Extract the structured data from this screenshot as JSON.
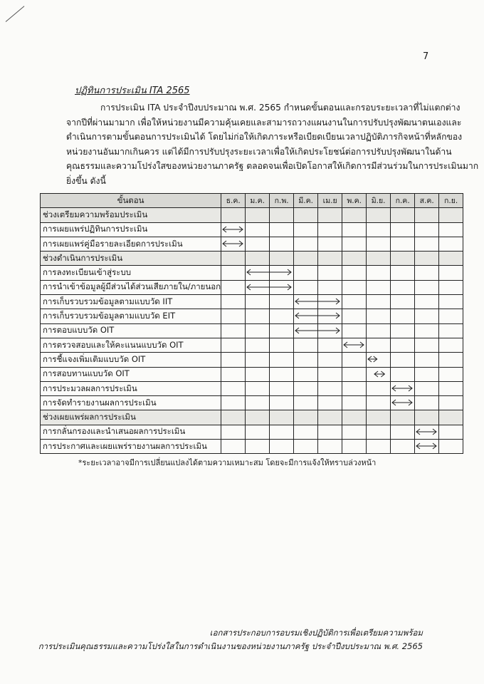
{
  "page_number": "7",
  "title": "ปฏิทินการประเมิน ITA 2565",
  "paragraph_lines": [
    "การประเมิน ITA ประจำปีงบประมาณ พ.ศ. 2565 กำหนดขั้นตอนและกรอบระยะเวลาที่ไม่แตกต่าง",
    "จากปีที่ผ่านมามาก เพื่อให้หน่วยงานมีความคุ้นเคยและสามารถวางแผนงานในการปรับปรุงพัฒนาตนเองและ",
    "ดำเนินการตามขั้นตอนการประเมินได้ โดยไม่ก่อให้เกิดภาระหรือเบียดเบียนเวลาปฏิบัติภารกิจหน้าที่หลักของ",
    "หน่วยงานอันมากเกินควร แต่ได้มีการปรับปรุงระยะเวลาเพื่อให้เกิดประโยชน์ต่อการปรับปรุงพัฒนาในด้าน",
    "คุณธรรมและความโปร่งใสของหน่วยงานภาครัฐ ตลอดจนเพื่อเปิดโอกาสให้เกิดการมีส่วนร่วมในการประเมินมาก",
    "ยิ่งขึ้น ดังนี้"
  ],
  "table": {
    "step_header": "ขั้นตอน",
    "months": [
      "ธ.ค.",
      "ม.ค.",
      "ก.พ.",
      "มี.ค.",
      "เม.ย",
      "พ.ค.",
      "มิ.ย.",
      "ก.ค.",
      "ส.ค.",
      "ก.ย."
    ],
    "rows": [
      {
        "label": "ช่วงเตรียมความพร้อมประเมิน",
        "section": true
      },
      {
        "label": "การเผยแพร่ปฏิทินการประเมิน",
        "span": [
          0,
          1
        ]
      },
      {
        "label": "การเผยแพร่คู่มือรายละเอียดการประเมิน",
        "span": [
          0,
          1
        ]
      },
      {
        "label": "ช่วงดำเนินการประเมิน",
        "section": true
      },
      {
        "label": "การลงทะเบียนเข้าสู่ระบบ",
        "span": [
          1,
          3
        ]
      },
      {
        "label": "การนำเข้าข้อมูลผู้มีส่วนได้ส่วนเสียภายใน/ภายนอก",
        "span": [
          1,
          3
        ]
      },
      {
        "label": "การเก็บรวบรวมข้อมูลตามแบบวัด IIT",
        "span": [
          3,
          5
        ]
      },
      {
        "label": "การเก็บรวบรวมข้อมูลตามแบบวัด EIT",
        "span": [
          3,
          5
        ]
      },
      {
        "label": "การตอบแบบวัด OIT",
        "span": [
          3,
          5
        ]
      },
      {
        "label": "การตรวจสอบและให้คะแนนแบบวัด OIT",
        "span": [
          5,
          6
        ]
      },
      {
        "label": "การชี้แจงเพิ่มเติมแบบวัด OIT",
        "span": [
          6,
          6.55
        ]
      },
      {
        "label": "การสอบทานแบบวัด OIT",
        "span": [
          6.25,
          6.85
        ]
      },
      {
        "label": "การประมวลผลการประเมิน",
        "span": [
          7,
          8
        ]
      },
      {
        "label": "การจัดทำรายงานผลการประเมิน",
        "span": [
          7,
          8
        ]
      },
      {
        "label": "ช่วงเผยแพร่ผลการประเมิน",
        "section": true
      },
      {
        "label": "การกลั่นกรองและนำเสนอผลการประเมิน",
        "span": [
          8,
          9
        ]
      },
      {
        "label": "การประกาศและเผยแพร่รายงานผลการประเมิน",
        "span": [
          8,
          9
        ]
      }
    ]
  },
  "footnote": "*ระยะเวลาอาจมีการเปลี่ยนแปลงได้ตามความเหมาะสม โดยจะมีการแจ้งให้ทราบล่วงหน้า",
  "footer": {
    "line1": "เอกสารประกอบการอบรมเชิงปฏิบัติการเพื่อเตรียมความพร้อม",
    "line2": "การประเมินคุณธรรมและความโปร่งใสในการดำเนินงานของหน่วยงานภาครัฐ ประจำปีงบประมาณ พ.ศ. 2565"
  }
}
